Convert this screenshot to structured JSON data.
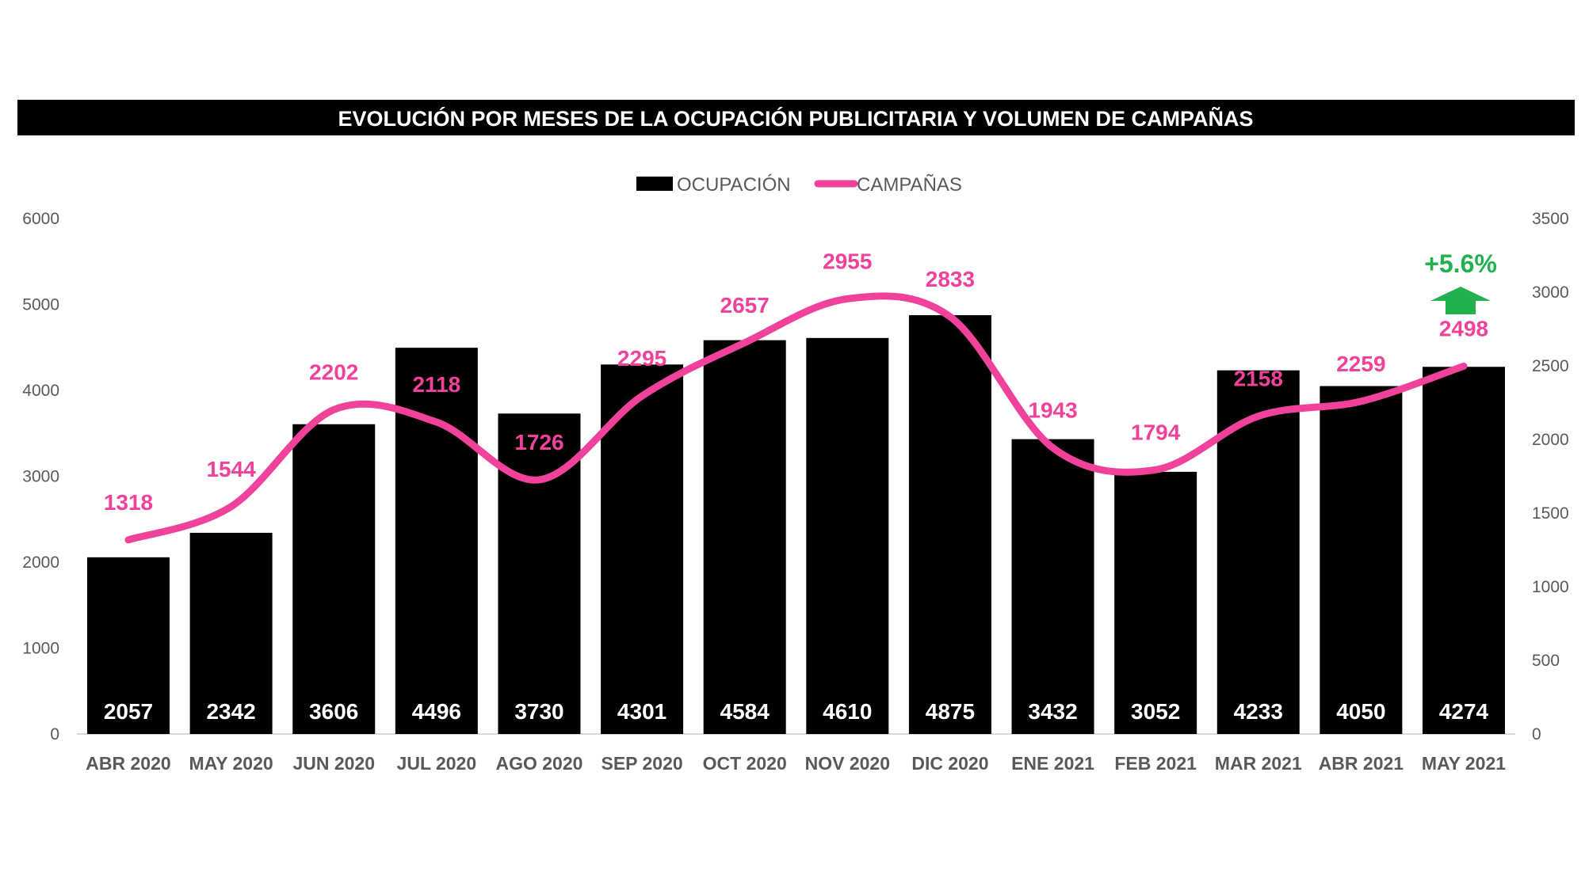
{
  "chart_data": {
    "type": "bar+line",
    "title": "EVOLUCIÓN POR MESES DE LA OCUPACIÓN PUBLICITARIA Y VOLUMEN DE CAMPAÑAS",
    "categories": [
      "ABR 2020",
      "MAY 2020",
      "JUN 2020",
      "JUL 2020",
      "AGO 2020",
      "SEP 2020",
      "OCT 2020",
      "NOV 2020",
      "DIC 2020",
      "ENE 2021",
      "FEB 2021",
      "MAR 2021",
      "ABR 2021",
      "MAY 2021"
    ],
    "series": [
      {
        "name": "OCUPACIÓN",
        "type": "bar",
        "axis": "left",
        "color": "#000000",
        "values": [
          2057,
          2342,
          3606,
          4496,
          3730,
          4301,
          4584,
          4610,
          4875,
          3432,
          3052,
          4233,
          4050,
          4274
        ]
      },
      {
        "name": "CAMPAÑAS",
        "type": "line",
        "axis": "right",
        "color": "#F0429A",
        "smooth": true,
        "values": [
          1318,
          1544,
          2202,
          2118,
          1726,
          2295,
          2657,
          2955,
          2833,
          1943,
          1794,
          2158,
          2259,
          2498
        ]
      }
    ],
    "left_axis": {
      "ylim": [
        0,
        6000
      ],
      "ticks": [
        "0",
        "1000",
        "2000",
        "3000",
        "4000",
        "5000",
        "6000"
      ]
    },
    "right_axis": {
      "ylim": [
        0,
        3500
      ],
      "ticks": [
        "0",
        "500",
        "1000",
        "1500",
        "2000",
        "2500",
        "3000",
        "3500"
      ]
    },
    "grid": false,
    "legend_position": "top-center",
    "annotation": {
      "text": "+5.6%",
      "color": "#22B14C",
      "icon": "arrow-up-icon"
    }
  }
}
